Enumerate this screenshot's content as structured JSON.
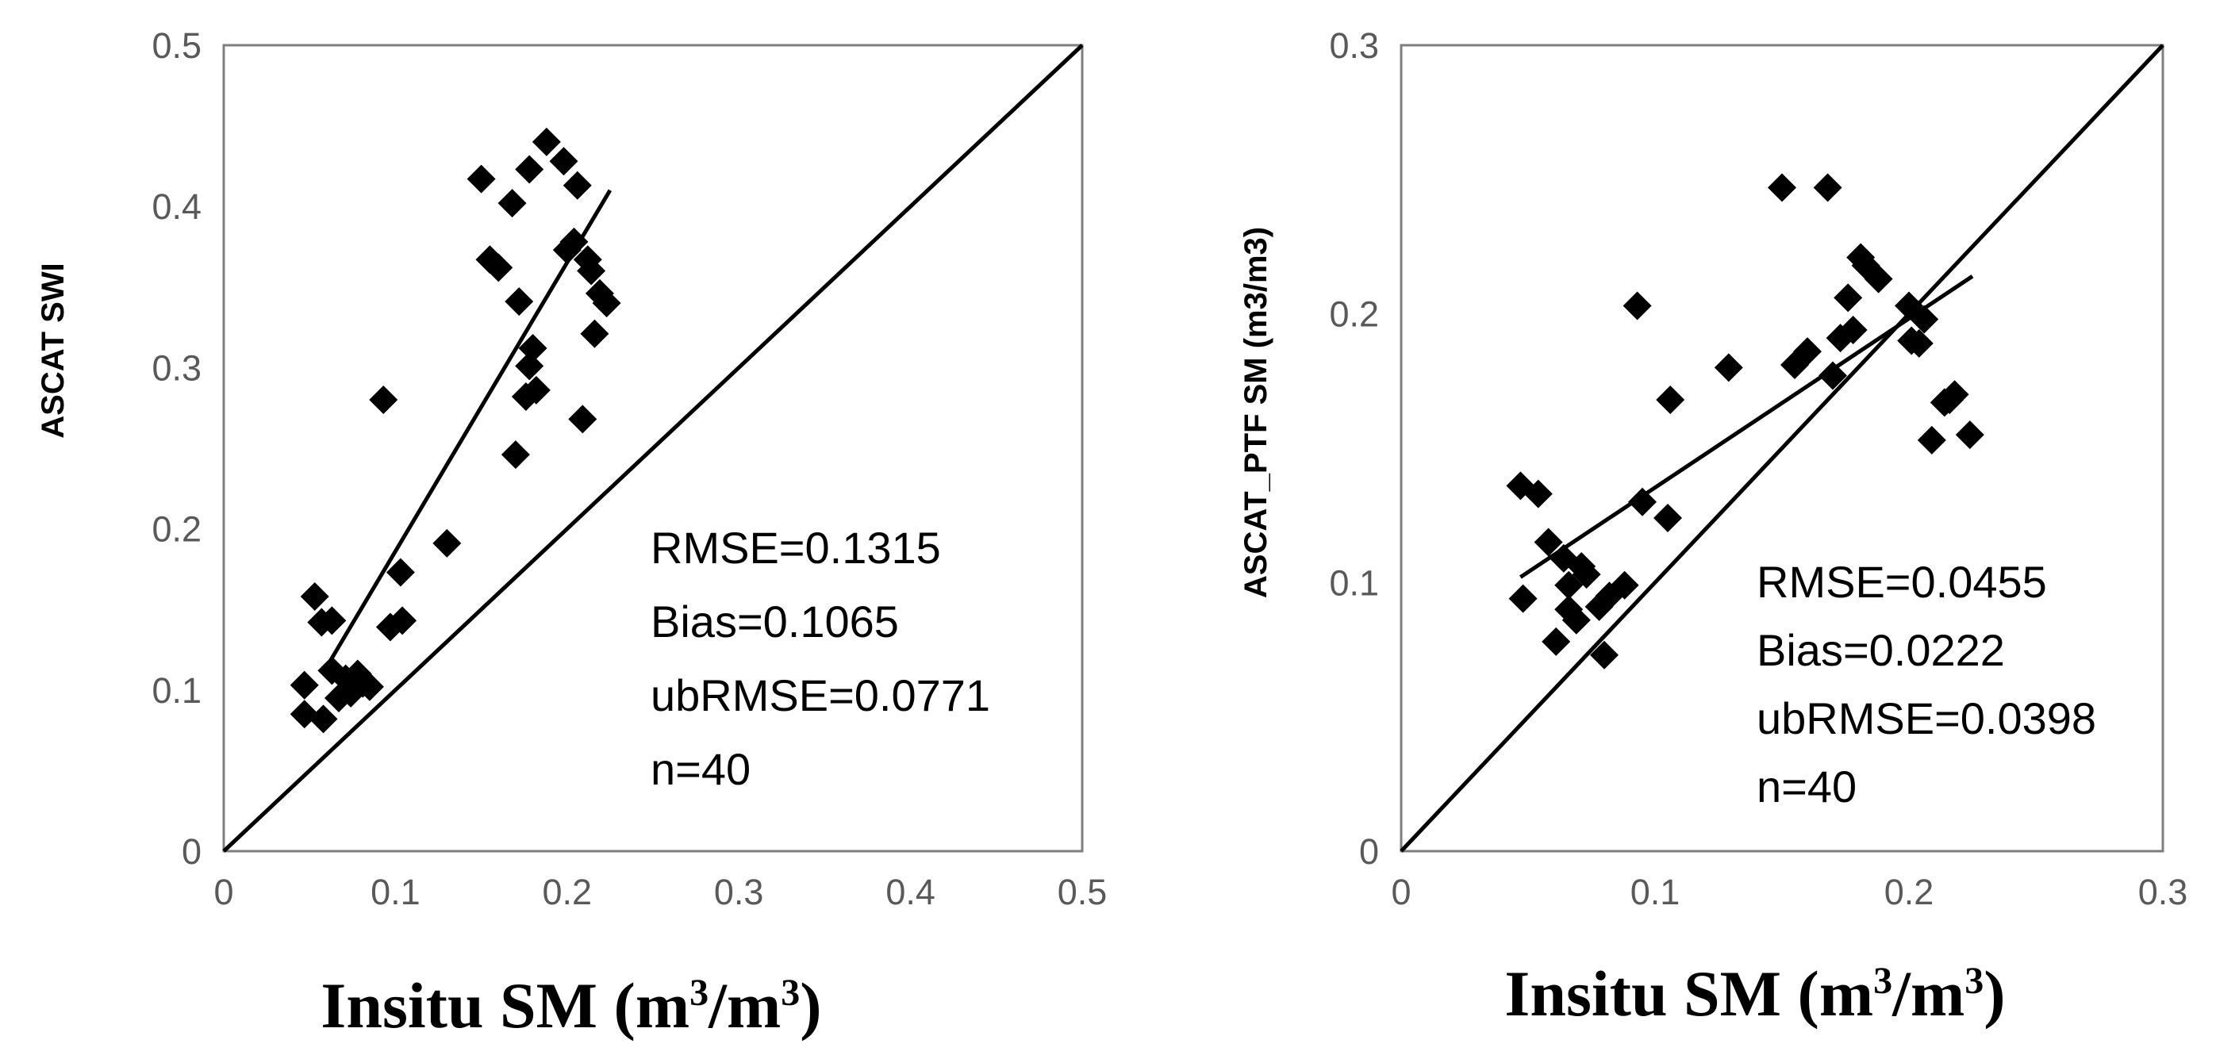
{
  "chart_data": [
    {
      "type": "scatter",
      "title": "",
      "xlabel_main": "Insitu SM (m",
      "xlabel_sup1": "3",
      "xlabel_mid": "/m",
      "xlabel_sup2": "3",
      "xlabel_end": ")",
      "ylabel": "ASCAT  SWI",
      "xlim": [
        0,
        0.5
      ],
      "ylim": [
        0,
        0.5
      ],
      "xticks": [
        "0",
        "0.1",
        "0.2",
        "0.3",
        "0.4",
        "0.5"
      ],
      "yticks": [
        "0",
        "0.1",
        "0.2",
        "0.3",
        "0.4",
        "0.5"
      ],
      "grid": false,
      "one_to_one_line": true,
      "fit_line": {
        "x": [
          0.062,
          0.225
        ],
        "y": [
          0.118,
          0.41
        ]
      },
      "stats": [
        "RMSE=0.1315",
        "Bias=0.1065",
        "ubRMSE=0.0771",
        "n=40"
      ],
      "points": [
        {
          "x": 0.047,
          "y": 0.103
        },
        {
          "x": 0.047,
          "y": 0.085
        },
        {
          "x": 0.053,
          "y": 0.158
        },
        {
          "x": 0.057,
          "y": 0.142
        },
        {
          "x": 0.058,
          "y": 0.082
        },
        {
          "x": 0.063,
          "y": 0.143
        },
        {
          "x": 0.063,
          "y": 0.112
        },
        {
          "x": 0.067,
          "y": 0.095
        },
        {
          "x": 0.071,
          "y": 0.107
        },
        {
          "x": 0.074,
          "y": 0.098
        },
        {
          "x": 0.078,
          "y": 0.11
        },
        {
          "x": 0.081,
          "y": 0.104
        },
        {
          "x": 0.085,
          "y": 0.102
        },
        {
          "x": 0.093,
          "y": 0.28
        },
        {
          "x": 0.097,
          "y": 0.139
        },
        {
          "x": 0.103,
          "y": 0.173
        },
        {
          "x": 0.104,
          "y": 0.143
        },
        {
          "x": 0.13,
          "y": 0.191
        },
        {
          "x": 0.15,
          "y": 0.417
        },
        {
          "x": 0.155,
          "y": 0.367
        },
        {
          "x": 0.16,
          "y": 0.362
        },
        {
          "x": 0.168,
          "y": 0.402
        },
        {
          "x": 0.17,
          "y": 0.246
        },
        {
          "x": 0.172,
          "y": 0.341
        },
        {
          "x": 0.176,
          "y": 0.282
        },
        {
          "x": 0.178,
          "y": 0.301
        },
        {
          "x": 0.178,
          "y": 0.423
        },
        {
          "x": 0.18,
          "y": 0.312
        },
        {
          "x": 0.182,
          "y": 0.286
        },
        {
          "x": 0.188,
          "y": 0.44
        },
        {
          "x": 0.198,
          "y": 0.428
        },
        {
          "x": 0.2,
          "y": 0.373
        },
        {
          "x": 0.204,
          "y": 0.378
        },
        {
          "x": 0.206,
          "y": 0.413
        },
        {
          "x": 0.209,
          "y": 0.268
        },
        {
          "x": 0.212,
          "y": 0.367
        },
        {
          "x": 0.214,
          "y": 0.36
        },
        {
          "x": 0.216,
          "y": 0.321
        },
        {
          "x": 0.219,
          "y": 0.346
        },
        {
          "x": 0.223,
          "y": 0.34
        }
      ]
    },
    {
      "type": "scatter",
      "title": "",
      "xlabel_main": "Insitu SM (m",
      "xlabel_sup1": "3",
      "xlabel_mid": "/m",
      "xlabel_sup2": "3",
      "xlabel_end": ")",
      "ylabel": "ASCAT_PTF SM (m3/m3)",
      "xlim": [
        0,
        0.3
      ],
      "ylim": [
        0,
        0.3
      ],
      "xticks": [
        "0",
        "0.1",
        "0.2",
        "0.3"
      ],
      "yticks": [
        "0",
        "0.1",
        "0.2",
        "0.3"
      ],
      "grid": false,
      "one_to_one_line": true,
      "fit_line": {
        "x": [
          0.047,
          0.225
        ],
        "y": [
          0.102,
          0.214
        ]
      },
      "stats": [
        "RMSE=0.0455",
        "Bias=0.0222",
        "ubRMSE=0.0398",
        "n=40"
      ],
      "points": [
        {
          "x": 0.047,
          "y": 0.136
        },
        {
          "x": 0.048,
          "y": 0.094
        },
        {
          "x": 0.054,
          "y": 0.133
        },
        {
          "x": 0.058,
          "y": 0.115
        },
        {
          "x": 0.061,
          "y": 0.078
        },
        {
          "x": 0.064,
          "y": 0.109
        },
        {
          "x": 0.066,
          "y": 0.099
        },
        {
          "x": 0.066,
          "y": 0.09
        },
        {
          "x": 0.069,
          "y": 0.086
        },
        {
          "x": 0.071,
          "y": 0.106
        },
        {
          "x": 0.073,
          "y": 0.103
        },
        {
          "x": 0.078,
          "y": 0.091
        },
        {
          "x": 0.08,
          "y": 0.073
        },
        {
          "x": 0.082,
          "y": 0.095
        },
        {
          "x": 0.088,
          "y": 0.099
        },
        {
          "x": 0.093,
          "y": 0.203
        },
        {
          "x": 0.095,
          "y": 0.13
        },
        {
          "x": 0.105,
          "y": 0.124
        },
        {
          "x": 0.106,
          "y": 0.168
        },
        {
          "x": 0.129,
          "y": 0.18
        },
        {
          "x": 0.15,
          "y": 0.247
        },
        {
          "x": 0.155,
          "y": 0.181
        },
        {
          "x": 0.16,
          "y": 0.186
        },
        {
          "x": 0.168,
          "y": 0.247
        },
        {
          "x": 0.17,
          "y": 0.177
        },
        {
          "x": 0.173,
          "y": 0.191
        },
        {
          "x": 0.176,
          "y": 0.206
        },
        {
          "x": 0.178,
          "y": 0.194
        },
        {
          "x": 0.181,
          "y": 0.221
        },
        {
          "x": 0.183,
          "y": 0.218
        },
        {
          "x": 0.188,
          "y": 0.213
        },
        {
          "x": 0.2,
          "y": 0.203
        },
        {
          "x": 0.201,
          "y": 0.19
        },
        {
          "x": 0.204,
          "y": 0.189
        },
        {
          "x": 0.206,
          "y": 0.198
        },
        {
          "x": 0.209,
          "y": 0.153
        },
        {
          "x": 0.214,
          "y": 0.167
        },
        {
          "x": 0.216,
          "y": 0.168
        },
        {
          "x": 0.218,
          "y": 0.17
        },
        {
          "x": 0.224,
          "y": 0.155
        }
      ]
    }
  ]
}
